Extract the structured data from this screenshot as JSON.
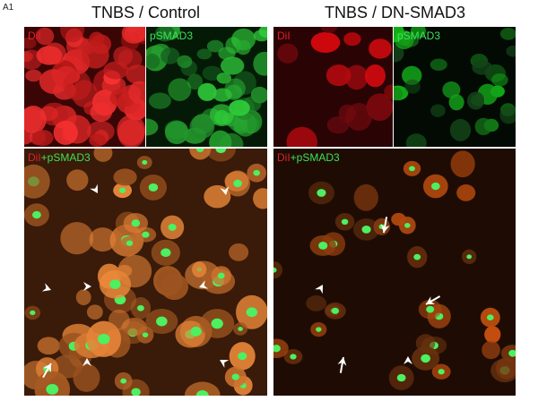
{
  "figure_label": "A1",
  "columns": [
    {
      "title": "TNBS / Control",
      "panels": {
        "dii": "DiI",
        "psmad3": "pSMAD3",
        "merge_red": "DiI",
        "merge_plus": "+pSMAD3"
      }
    },
    {
      "title": "TNBS / DN-SMAD3",
      "panels": {
        "dii": "DiI",
        "psmad3": "pSMAD3",
        "merge_red": "DiI",
        "merge_plus": "+pSMAD3"
      }
    }
  ],
  "colors": {
    "dii": "#e0202a",
    "psmad3": "#3ee05a",
    "arrow": "#ffffff"
  },
  "annotation_icons": [
    "arrowhead-icon",
    "arrow-icon"
  ]
}
